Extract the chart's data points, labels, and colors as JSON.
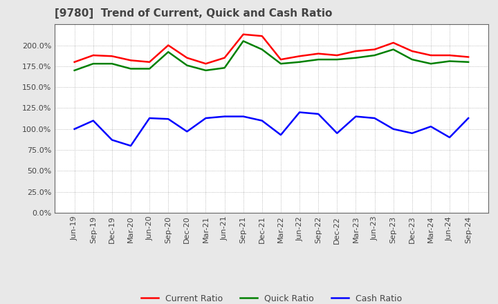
{
  "title": "[9780]  Trend of Current, Quick and Cash Ratio",
  "x_labels": [
    "Jun-19",
    "Sep-19",
    "Dec-19",
    "Mar-20",
    "Jun-20",
    "Sep-20",
    "Dec-20",
    "Mar-21",
    "Jun-21",
    "Sep-21",
    "Dec-21",
    "Mar-22",
    "Jun-22",
    "Sep-22",
    "Dec-22",
    "Mar-23",
    "Jun-23",
    "Sep-23",
    "Dec-23",
    "Mar-24",
    "Jun-24",
    "Sep-24"
  ],
  "current_ratio": [
    180,
    188,
    187,
    182,
    180,
    200,
    185,
    178,
    185,
    213,
    211,
    183,
    187,
    190,
    188,
    193,
    195,
    203,
    193,
    188,
    188,
    186
  ],
  "quick_ratio": [
    170,
    178,
    178,
    172,
    172,
    192,
    176,
    170,
    173,
    205,
    195,
    178,
    180,
    183,
    183,
    185,
    188,
    195,
    183,
    178,
    181,
    180
  ],
  "cash_ratio": [
    100,
    110,
    87,
    80,
    113,
    112,
    97,
    113,
    115,
    115,
    110,
    93,
    120,
    118,
    95,
    115,
    113,
    100,
    95,
    103,
    90,
    113
  ],
  "current_color": "#ff0000",
  "quick_color": "#008000",
  "cash_color": "#0000ff",
  "ylim": [
    0,
    225
  ],
  "yticks": [
    0,
    25,
    50,
    75,
    100,
    125,
    150,
    175,
    200
  ],
  "plot_bg_color": "#ffffff",
  "fig_bg_color": "#e8e8e8",
  "grid_color": "#aaaaaa",
  "title_fontsize": 11,
  "tick_fontsize": 8,
  "label_color": "#444444"
}
